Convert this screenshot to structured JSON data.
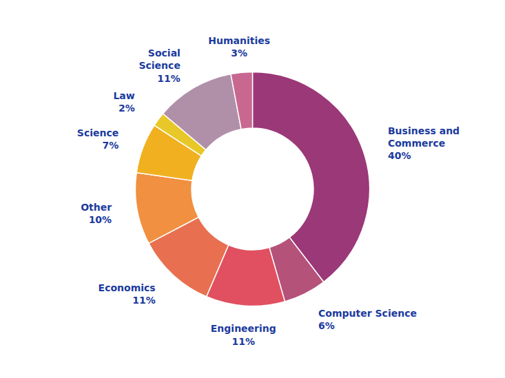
{
  "chart_data": {
    "type": "donut",
    "categories": [
      "Business and\nCommerce",
      "Computer Science",
      "Engineering",
      "Economics",
      "Other",
      "Science",
      "Law",
      "Social\nScience",
      "Humanities"
    ],
    "values": [
      40,
      6,
      11,
      11,
      10,
      7,
      2,
      11,
      3
    ],
    "value_labels": [
      "40%",
      "6%",
      "11%",
      "11%",
      "10%",
      "7%",
      "2%",
      "11%",
      "3%"
    ],
    "data_labels": true,
    "colors": [
      "#9B3878",
      "#B5527A",
      "#E05060",
      "#E87050",
      "#F09040",
      "#F0B020",
      "#E8C828",
      "#B090A8",
      "#C86890"
    ]
  }
}
